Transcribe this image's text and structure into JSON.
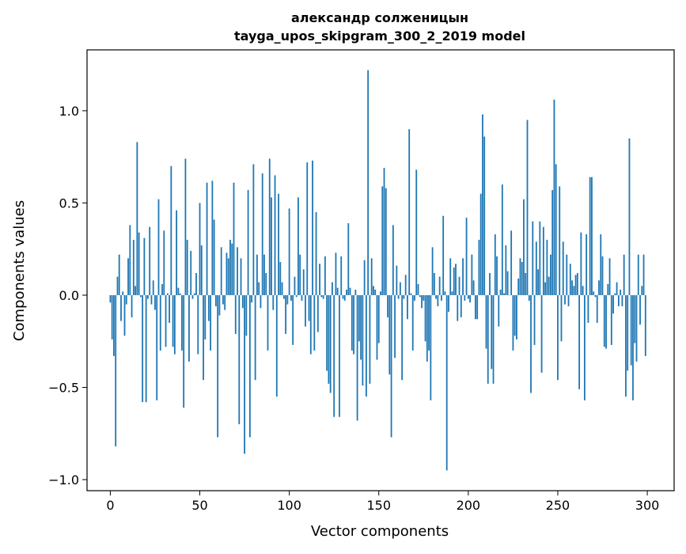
{
  "chart_data": {
    "type": "bar",
    "title": "александр солженицын",
    "subtitle": "tayga_upos_skipgram_300_2_2019 model",
    "xlabel": "Vector components",
    "ylabel": "Components values",
    "xlim": [
      -13,
      315
    ],
    "ylim": [
      -1.06,
      1.33
    ],
    "xticks": [
      0,
      50,
      100,
      150,
      200,
      250,
      300
    ],
    "xtick_labels": [
      "0",
      "50",
      "100",
      "150",
      "200",
      "250",
      "300"
    ],
    "yticks": [
      -1.0,
      -0.5,
      0.0,
      0.5,
      1.0
    ],
    "ytick_labels": [
      "−1.0",
      "−0.5",
      "0.0",
      "0.5",
      "1.0"
    ],
    "bar_color": "#1f77b4",
    "values": [
      -0.04,
      -0.24,
      -0.33,
      -0.82,
      0.1,
      0.22,
      -0.14,
      0.02,
      -0.22,
      -0.05,
      0.2,
      0.38,
      -0.12,
      0.3,
      0.05,
      0.83,
      0.34,
      -0.01,
      -0.58,
      0.31,
      -0.58,
      -0.02,
      0.37,
      -0.05,
      0.08,
      -0.08,
      -0.57,
      0.52,
      -0.3,
      0.06,
      0.35,
      -0.28,
      0.01,
      -0.15,
      0.7,
      -0.28,
      -0.32,
      0.46,
      0.04,
      0.01,
      -0.3,
      -0.61,
      0.74,
      0.3,
      -0.36,
      0.24,
      -0.02,
      0.01,
      0.12,
      -0.32,
      0.5,
      0.27,
      -0.46,
      -0.24,
      0.61,
      -0.14,
      -0.3,
      0.62,
      0.41,
      -0.06,
      -0.77,
      -0.11,
      0.26,
      -0.05,
      -0.08,
      0.23,
      0.2,
      0.3,
      0.28,
      0.61,
      -0.21,
      0.26,
      -0.7,
      0.2,
      -0.07,
      -0.86,
      -0.22,
      0.57,
      -0.77,
      -0.04,
      0.71,
      -0.46,
      0.22,
      0.07,
      -0.07,
      0.66,
      0.22,
      0.12,
      -0.3,
      0.74,
      0.53,
      -0.08,
      0.65,
      -0.55,
      0.55,
      0.18,
      0.07,
      -0.02,
      -0.21,
      -0.05,
      0.47,
      -0.03,
      -0.27,
      0.1,
      -0.01,
      0.53,
      0.22,
      -0.03,
      0.14,
      -0.17,
      0.72,
      -0.14,
      -0.32,
      0.73,
      -0.3,
      0.45,
      -0.2,
      0.17,
      -0.01,
      -0.02,
      0.21,
      -0.41,
      -0.48,
      -0.53,
      0.07,
      -0.66,
      0.23,
      0.04,
      -0.66,
      0.21,
      -0.02,
      -0.03,
      0.03,
      0.39,
      0.04,
      -0.3,
      -0.32,
      0.03,
      -0.68,
      -0.25,
      -0.35,
      -0.49,
      0.19,
      -0.55,
      1.22,
      -0.48,
      0.2,
      0.05,
      0.03,
      -0.35,
      -0.26,
      0.02,
      0.59,
      0.69,
      0.58,
      -0.12,
      -0.43,
      -0.77,
      0.38,
      -0.34,
      0.16,
      -0.02,
      0.07,
      -0.46,
      -0.02,
      0.11,
      -0.13,
      0.9,
      0.01,
      -0.3,
      -0.03,
      0.68,
      0.06,
      -0.01,
      -0.07,
      -0.03,
      -0.25,
      -0.36,
      -0.3,
      -0.57,
      0.26,
      0.12,
      -0.02,
      -0.06,
      0.1,
      -0.03,
      0.43,
      0.02,
      -0.95,
      -0.09,
      0.2,
      0.02,
      0.15,
      0.17,
      -0.14,
      0.1,
      -0.12,
      0.2,
      -0.03,
      0.42,
      -0.02,
      -0.04,
      0.22,
      0.08,
      -0.13,
      -0.13,
      0.3,
      0.55,
      0.98,
      0.86,
      -0.29,
      -0.48,
      0.12,
      -0.4,
      -0.48,
      0.33,
      0.21,
      -0.17,
      0.03,
      0.6,
      0.01,
      0.27,
      0.13,
      0.0,
      0.35,
      -0.3,
      -0.22,
      -0.24,
      0.09,
      0.2,
      0.18,
      0.52,
      0.12,
      0.95,
      -0.03,
      -0.53,
      0.4,
      -0.27,
      0.29,
      0.14,
      0.4,
      -0.42,
      0.37,
      0.07,
      0.3,
      0.1,
      0.22,
      0.57,
      1.06,
      0.71,
      -0.46,
      0.59,
      -0.25,
      0.29,
      -0.05,
      0.22,
      -0.06,
      0.17,
      0.08,
      0.05,
      0.11,
      0.12,
      -0.51,
      0.34,
      0.05,
      -0.57,
      0.33,
      -0.15,
      0.64,
      0.64,
      0.02,
      -0.01,
      -0.15,
      0.08,
      0.33,
      0.21,
      -0.28,
      -0.29,
      0.06,
      0.2,
      -0.27,
      -0.1,
      0.01,
      0.07,
      -0.06,
      0.03,
      -0.06,
      0.22,
      -0.55,
      -0.41,
      0.85,
      -0.38,
      -0.57,
      -0.26,
      -0.36,
      0.22,
      -0.16,
      0.05,
      0.22,
      -0.33
    ]
  }
}
